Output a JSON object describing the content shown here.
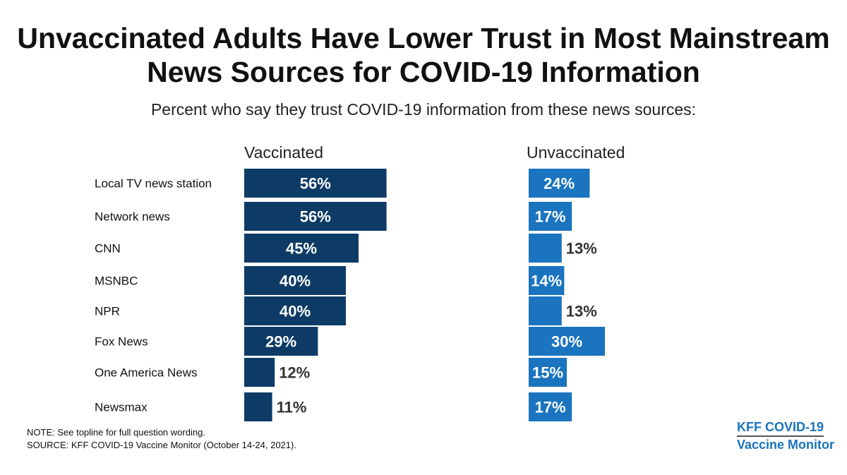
{
  "chart_data": {
    "type": "bar",
    "title": "Unvaccinated Adults Have Lower Trust in Most Mainstream News Sources for COVID-19 Information",
    "subtitle": "Percent who say they trust COVID-19 information from these news sources:",
    "categories": [
      "Local TV news station",
      "Network news",
      "CNN",
      "MSNBC",
      "NPR",
      "Fox News",
      "One America News",
      "Newsmax"
    ],
    "series": [
      {
        "name": "Vaccinated",
        "values": [
          56,
          56,
          45,
          40,
          40,
          29,
          12,
          11
        ],
        "color": "#0d3b66"
      },
      {
        "name": "Unvaccinated",
        "values": [
          24,
          17,
          13,
          14,
          13,
          30,
          15,
          17
        ],
        "color": "#1a74bf"
      }
    ],
    "value_suffix": "%"
  },
  "notes": {
    "note": "NOTE: See topline for full question wording.",
    "source": "SOURCE: KFF COVID-19 Vaccine Monitor (October 14-24, 2021)."
  },
  "logo": {
    "line1": "KFF COVID-19",
    "line2": "Vaccine Monitor"
  }
}
